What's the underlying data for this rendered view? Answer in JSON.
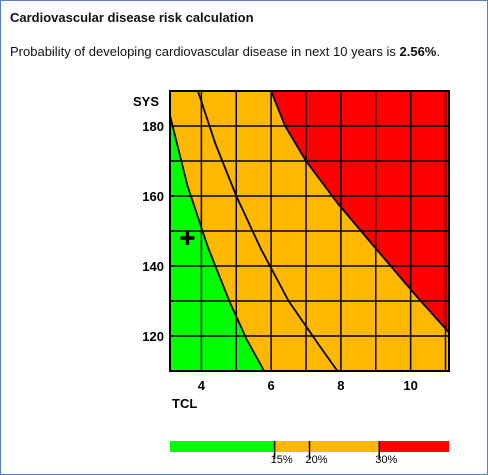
{
  "panel": {
    "title": "Cardiovascular disease risk calculation",
    "result_prefix": "Probability of developing cardiovascular disease in next 10 years is ",
    "result_value": "2.56%",
    "result_suffix": "."
  },
  "chart_data": {
    "type": "heatmap",
    "xlabel": "TCL",
    "ylabel": "SYS",
    "xlim": [
      3.1,
      11.1
    ],
    "ylim": [
      110,
      190
    ],
    "x_ticks": [
      4,
      6,
      8,
      10
    ],
    "y_ticks": [
      120,
      140,
      160,
      180
    ],
    "gridlines_x": [
      4,
      5,
      6,
      7,
      8,
      9,
      10,
      11
    ],
    "gridlines_y": [
      120,
      130,
      140,
      150,
      160,
      170,
      180
    ],
    "grid": true,
    "marker": {
      "x": 3.6,
      "y": 148
    },
    "zones": [
      {
        "label": "<15%",
        "color": "#00ff00"
      },
      {
        "label": "15%-30%",
        "color": "#ffb800"
      },
      {
        "label": ">30%",
        "color": "#ff0000"
      }
    ],
    "contours": [
      {
        "level": "15%",
        "points": [
          [
            3.1,
            183
          ],
          [
            3.6,
            163
          ],
          [
            4.2,
            145
          ],
          [
            4.8,
            130
          ],
          [
            5.3,
            119
          ],
          [
            5.8,
            110
          ]
        ]
      },
      {
        "level": "20%",
        "points": [
          [
            3.9,
            190
          ],
          [
            4.4,
            175
          ],
          [
            5.0,
            160
          ],
          [
            5.7,
            145
          ],
          [
            6.5,
            130
          ],
          [
            7.4,
            117
          ],
          [
            7.9,
            110
          ]
        ]
      },
      {
        "level": "30%",
        "points": [
          [
            6.0,
            190
          ],
          [
            6.4,
            180
          ],
          [
            7.0,
            170
          ],
          [
            7.9,
            158
          ],
          [
            9.0,
            145
          ],
          [
            10.2,
            131
          ],
          [
            11.1,
            121
          ]
        ]
      }
    ],
    "legend_bar": {
      "min": 0,
      "max": 40,
      "segments": [
        {
          "from": 0,
          "to": 15,
          "color": "#00ff00"
        },
        {
          "from": 15,
          "to": 30,
          "color": "#ffb800"
        },
        {
          "from": 30,
          "to": 40,
          "color": "#ff0000"
        }
      ],
      "ticks": [
        {
          "value": 15,
          "label": "15%"
        },
        {
          "value": 20,
          "label": "20%"
        },
        {
          "value": 30,
          "label": "30%"
        }
      ]
    }
  }
}
